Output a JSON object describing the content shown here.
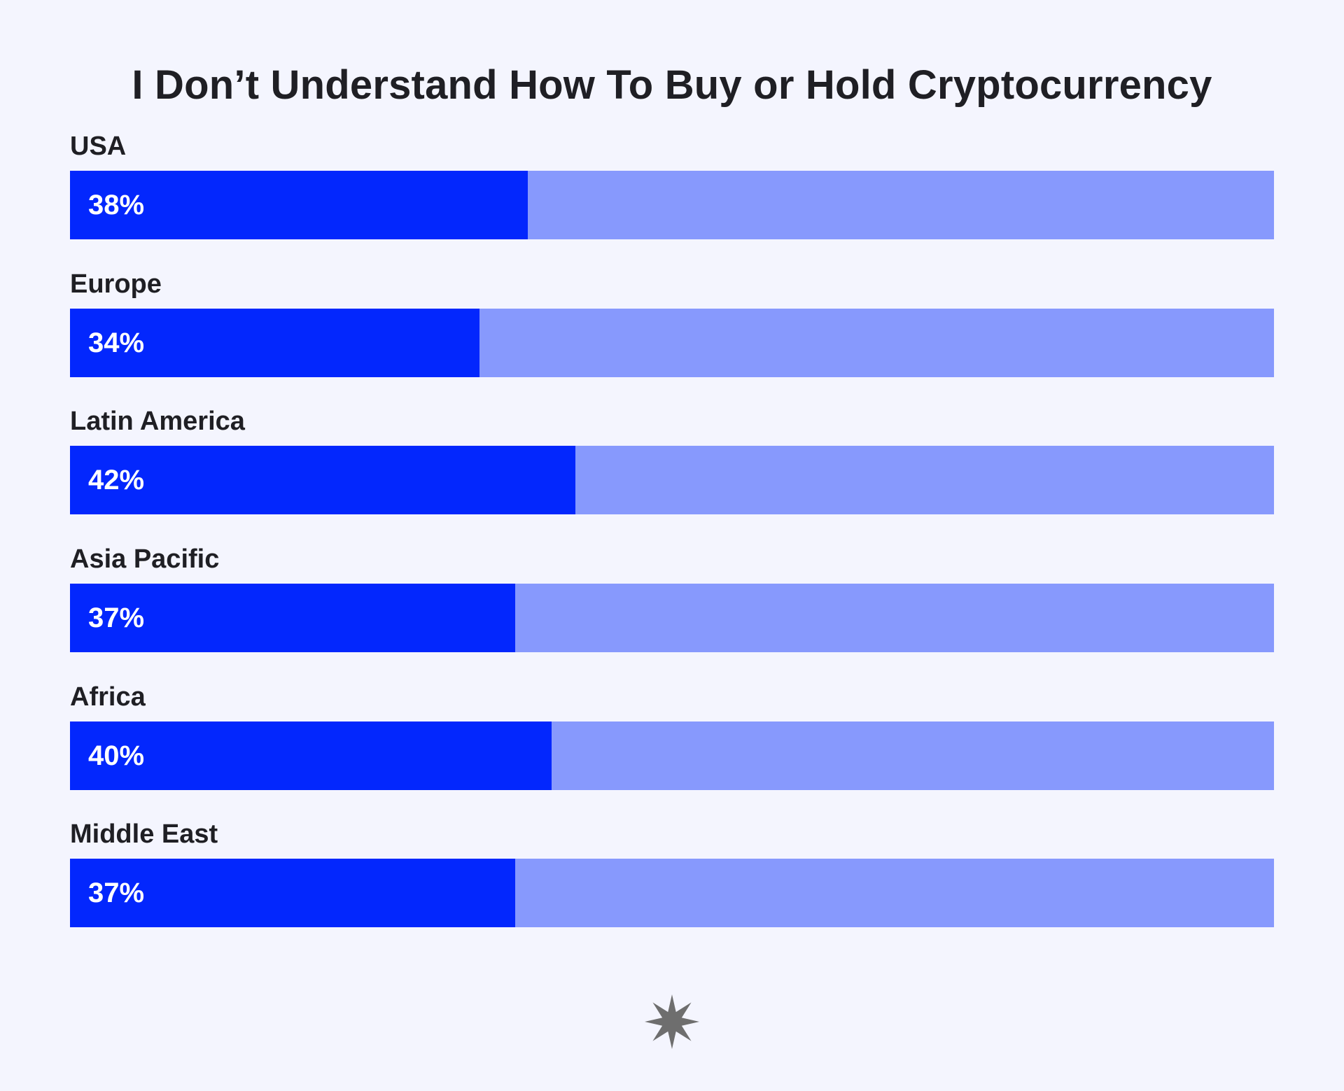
{
  "chart_data": {
    "type": "bar",
    "orientation": "horizontal",
    "title": "I Don’t Understand How To Buy or Hold Cryptocurrency",
    "categories": [
      "USA",
      "Europe",
      "Latin America",
      "Asia Pacific",
      "Africa",
      "Middle East"
    ],
    "values": [
      38,
      34,
      42,
      37,
      40,
      37
    ],
    "value_labels": [
      "38%",
      "34%",
      "42%",
      "37%",
      "40%",
      "37%"
    ],
    "unit": "%",
    "xlim": [
      0,
      100
    ],
    "grid": false,
    "legend": "none"
  },
  "colors": {
    "background": "#f4f5fe",
    "fill": "#0327fd",
    "track": "#8799fd",
    "text": "#1f1f24",
    "value_text": "#ffffff",
    "logo": "#6e6e6e"
  },
  "logo": {
    "icon": "star-burst-icon"
  }
}
